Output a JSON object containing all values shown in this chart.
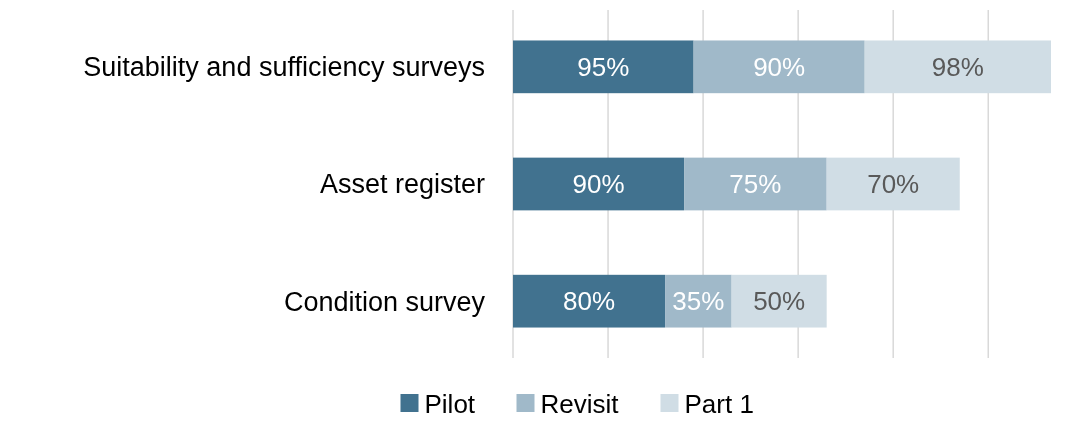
{
  "chart_data": {
    "type": "bar",
    "orientation": "horizontal",
    "stacked": true,
    "categories": [
      "Suitability and sufficiency surveys",
      "Asset register",
      "Condition survey"
    ],
    "series": [
      {
        "name": "Pilot",
        "color": "#41728f",
        "values": [
          95,
          90,
          80
        ],
        "value_labels": [
          "95%",
          "90%",
          "80%"
        ]
      },
      {
        "name": "Revisit",
        "color": "#a0b9c9",
        "values": [
          90,
          75,
          35
        ],
        "value_labels": [
          "90%",
          "75%",
          "35%"
        ]
      },
      {
        "name": "Part 1",
        "color": "#d0dde5",
        "values": [
          98,
          70,
          50
        ],
        "value_labels": [
          "98%",
          "70%",
          "50%"
        ]
      }
    ],
    "xticks": [
      {
        "value": 0,
        "label": null
      },
      {
        "value": 50,
        "label": null
      },
      {
        "value": 100,
        "label": null
      },
      {
        "value": 150,
        "label": null
      },
      {
        "value": 200,
        "label": null
      },
      {
        "value": 250,
        "label": null
      }
    ],
    "grid": "x",
    "tick_labels": "y",
    "legend": "bottom"
  }
}
